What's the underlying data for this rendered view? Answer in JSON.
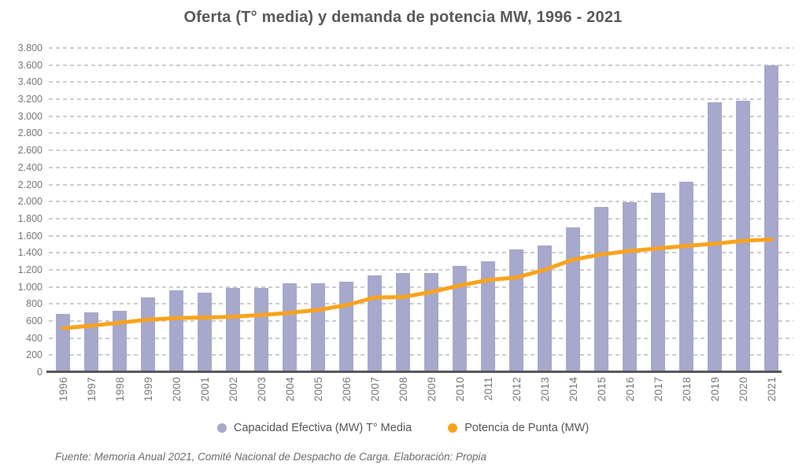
{
  "title": "Oferta (T° media) y demanda de potencia MW, 1996 - 2021",
  "footer": "Fuente: Memoria Anual 2021, Comité Nacional de Despacho de Carga. Elaboración: Propia",
  "legend": {
    "bar_label": "Capacidad Efectiva (MW) T° Media",
    "line_label": "Potencia de Punta (MW)"
  },
  "colors": {
    "bar": "#A6A8CC",
    "line": "#F9A31D",
    "title_text": "#58595B",
    "tick_text": "#77787B",
    "gridline": "#CDCDCF",
    "axis": "#57585A"
  },
  "chart_data": {
    "type": "bar",
    "subtype": "bar+line combo",
    "title": "Oferta (T° media) y demanda de potencia MW, 1996 - 2021",
    "xlabel": "",
    "ylabel": "",
    "ylim": [
      0,
      3800
    ],
    "ytick_step": 200,
    "ytick_labels": [
      "0",
      "200",
      "400",
      "600",
      "800",
      "1.000",
      "1.200",
      "1.400",
      "1.600",
      "1.800",
      "2.000",
      "2.200",
      "2.400",
      "2.600",
      "2.800",
      "3.000",
      "3.200",
      "3.400",
      "3.600",
      "3.800"
    ],
    "grid": "horizontal dashed",
    "legend_position": "bottom",
    "categories": [
      "1996",
      "1997",
      "1998",
      "1999",
      "2000",
      "2001",
      "2002",
      "2003",
      "2004",
      "2005",
      "2006",
      "2007",
      "2008",
      "2009",
      "2010",
      "2011",
      "2012",
      "2013",
      "2014",
      "2015",
      "2016",
      "2017",
      "2018",
      "2019",
      "2020",
      "2021"
    ],
    "series": [
      {
        "name": "Capacidad Efectiva (MW) T° Media",
        "type": "bar",
        "color": "#A6A8CC",
        "values": [
          685,
          705,
          720,
          875,
          960,
          930,
          990,
          990,
          1040,
          1040,
          1065,
          1135,
          1160,
          1160,
          1250,
          1305,
          1440,
          1490,
          1700,
          1935,
          1995,
          2100,
          2230,
          3160,
          3180,
          3600
        ]
      },
      {
        "name": "Potencia de Punta (MW)",
        "type": "line",
        "color": "#F9A31D",
        "values": [
          515,
          545,
          580,
          615,
          635,
          640,
          650,
          670,
          695,
          730,
          785,
          875,
          880,
          940,
          1015,
          1080,
          1110,
          1200,
          1320,
          1380,
          1420,
          1450,
          1480,
          1505,
          1540,
          1555
        ]
      }
    ]
  }
}
